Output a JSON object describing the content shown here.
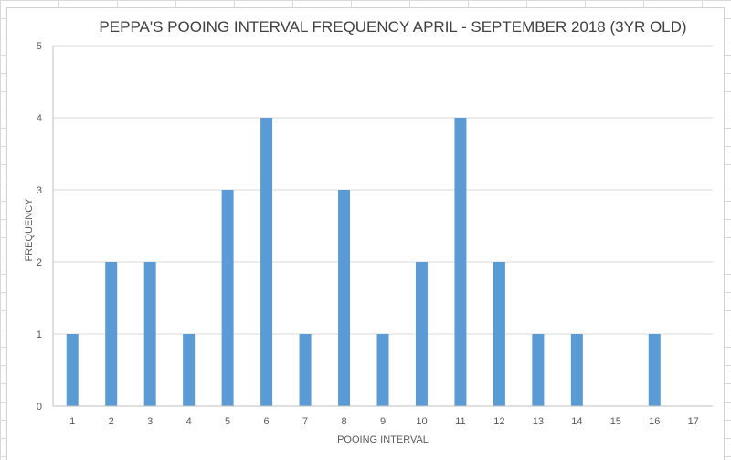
{
  "chart_data": {
    "type": "bar",
    "title": "PEPPA'S POOING INTERVAL FREQUENCY APRIL - SEPTEMBER 2018 (3YR OLD)",
    "xlabel": "POOING INTERVAL",
    "ylabel": "FREQUENCY",
    "categories": [
      "1",
      "2",
      "3",
      "4",
      "5",
      "6",
      "7",
      "8",
      "9",
      "10",
      "11",
      "12",
      "13",
      "14",
      "15",
      "16",
      "17"
    ],
    "values": [
      1,
      2,
      2,
      1,
      3,
      4,
      1,
      3,
      1,
      2,
      4,
      2,
      1,
      1,
      0,
      1,
      0
    ],
    "ylim": [
      0,
      5
    ],
    "yticks": [
      0,
      1,
      2,
      3,
      4,
      5
    ],
    "grid": "horizontal",
    "legend": "none",
    "bar_color": "#5b9bd5"
  }
}
